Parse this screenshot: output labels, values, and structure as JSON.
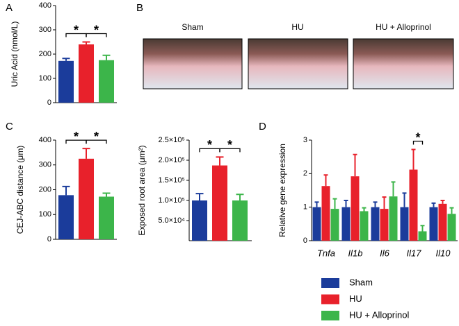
{
  "panel_labels": [
    "A",
    "B",
    "C",
    "D"
  ],
  "photos": {
    "labels": [
      "Sham",
      "HU",
      "HU + Alloprinol"
    ]
  },
  "chart_data": [
    {
      "type": "bar",
      "y_label": "Uric Acid (nmol/L)",
      "values": [
        172,
        240,
        175
      ],
      "errors": [
        10,
        10,
        20
      ],
      "colors": [
        "#1b3c9b",
        "#e8212b",
        "#3cb54a"
      ],
      "ylim": [
        0,
        400
      ],
      "yticks": [
        0,
        100,
        200,
        300,
        400
      ],
      "significance": [
        {
          "label": "*",
          "from": 0,
          "to": 1
        },
        {
          "label": "*",
          "from": 1,
          "to": 2
        }
      ]
    },
    {
      "type": "bar",
      "y_label": "CEJ-ABC distance (μm)",
      "values": [
        178,
        325,
        172
      ],
      "errors": [
        35,
        41,
        14
      ],
      "colors": [
        "#1b3c9b",
        "#e8212b",
        "#3cb54a"
      ],
      "ylim": [
        0,
        400
      ],
      "yticks": [
        0,
        100,
        200,
        300,
        400
      ],
      "significance": [
        {
          "label": "*",
          "from": 0,
          "to": 1
        },
        {
          "label": "*",
          "from": 1,
          "to": 2
        }
      ]
    },
    {
      "type": "bar",
      "y_label": "Exposed root area (μm²)",
      "values": [
        100000,
        187000,
        100000
      ],
      "errors": [
        17000,
        21000,
        15000
      ],
      "colors": [
        "#1b3c9b",
        "#e8212b",
        "#3cb54a"
      ],
      "ylim": [
        0,
        250000
      ],
      "yticks": [
        {
          "value": 50000,
          "label": "5.0×10⁴"
        },
        {
          "value": 100000,
          "label": "1.0×10⁵"
        },
        {
          "value": 150000,
          "label": "1.5×10⁵"
        },
        {
          "value": 200000,
          "label": "2.0×10⁵"
        },
        {
          "value": 250000,
          "label": "2.5×10⁵"
        }
      ],
      "significance": [
        {
          "label": "*",
          "from": 0,
          "to": 1
        },
        {
          "label": "*",
          "from": 1,
          "to": 2
        }
      ]
    },
    {
      "type": "bar",
      "y_label": "Relative gene expression",
      "categories": [
        "Tnfa",
        "Il1b",
        "Il6",
        "Il17",
        "Il10"
      ],
      "series": [
        {
          "name": "Sham",
          "color": "#1b3c9b",
          "values": [
            1,
            1,
            1,
            1,
            1
          ],
          "errors": [
            0.15,
            0.2,
            0.15,
            0.42,
            0.12
          ]
        },
        {
          "name": "HU",
          "color": "#e8212b",
          "values": [
            1.63,
            1.92,
            0.95,
            2.12,
            1.1
          ],
          "errors": [
            0.33,
            0.65,
            0.35,
            0.6,
            0.1
          ]
        },
        {
          "name": "HU + Alloprinol",
          "color": "#3cb54a",
          "values": [
            0.95,
            0.88,
            1.32,
            0.28,
            0.8
          ],
          "errors": [
            0.3,
            0.1,
            0.43,
            0.17,
            0.18
          ]
        }
      ],
      "ylim": [
        0,
        3
      ],
      "yticks": [
        0,
        1,
        2,
        3
      ],
      "significance": [
        {
          "label": "*",
          "category": 3,
          "from": 1,
          "to": 2
        }
      ]
    }
  ]
}
